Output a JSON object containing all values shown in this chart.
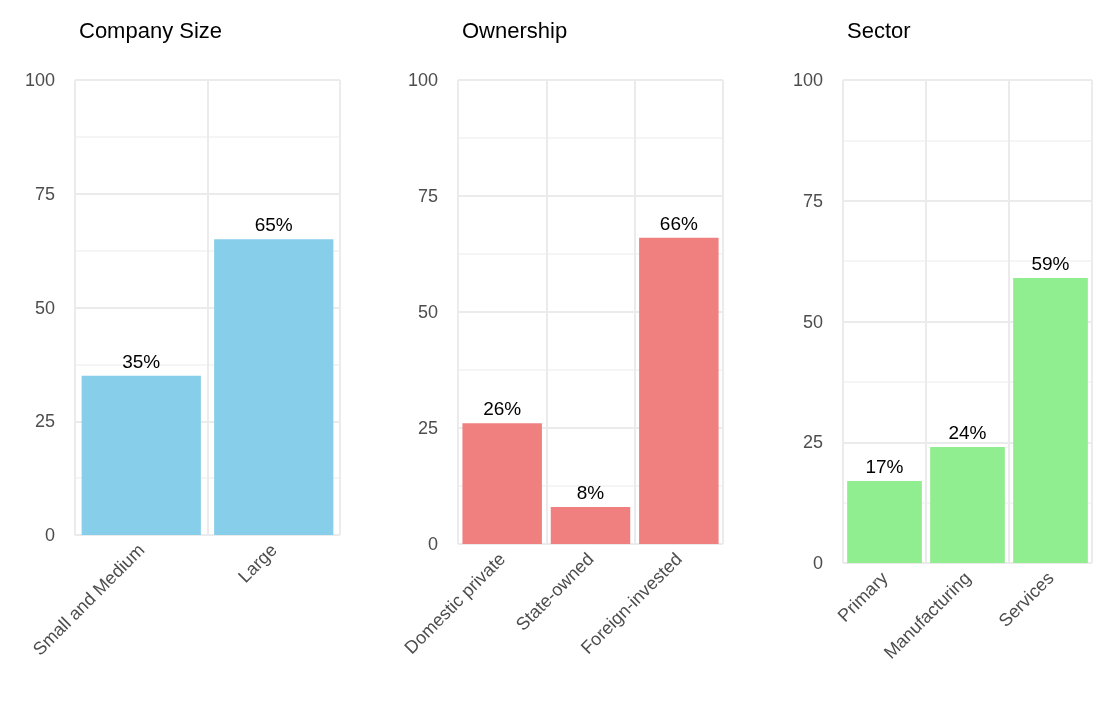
{
  "chart_data": [
    {
      "type": "bar",
      "title": "Company Size",
      "categories": [
        "Small and Medium",
        "Large"
      ],
      "values": [
        35,
        65
      ],
      "value_labels": [
        "35%",
        "65%"
      ],
      "color": "#87ceeb",
      "ylim": [
        0,
        100
      ],
      "yticks": [
        0,
        25,
        50,
        75,
        100
      ],
      "grid": true
    },
    {
      "type": "bar",
      "title": "Ownership",
      "categories": [
        "Domestic private",
        "State-owned",
        "Foreign-invested"
      ],
      "values": [
        26,
        8,
        66
      ],
      "value_labels": [
        "26%",
        "8%",
        "66%"
      ],
      "color": "#f08080",
      "ylim": [
        0,
        100
      ],
      "yticks": [
        0,
        25,
        50,
        75,
        100
      ],
      "grid": true
    },
    {
      "type": "bar",
      "title": "Sector",
      "categories": [
        "Primary",
        "Manufacturing",
        "Services"
      ],
      "values": [
        17,
        24,
        59
      ],
      "value_labels": [
        "17%",
        "24%",
        "59%"
      ],
      "color": "#90ee90",
      "ylim": [
        0,
        100
      ],
      "yticks": [
        0,
        25,
        50,
        75,
        100
      ],
      "grid": true
    }
  ]
}
